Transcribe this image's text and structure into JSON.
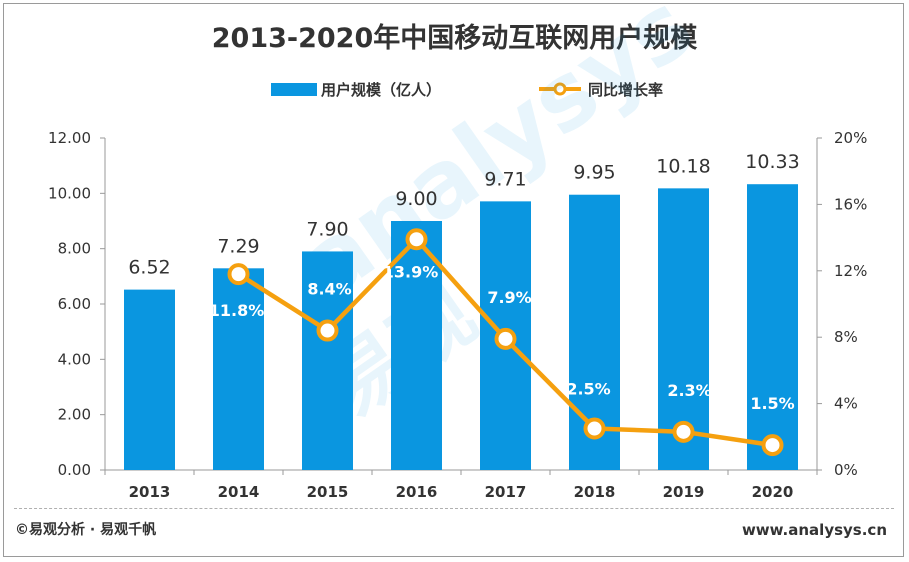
{
  "chart_data": {
    "type": "bar+line",
    "title": "2013-2020年中国移动互联网用户规模",
    "categories": [
      "2013",
      "2014",
      "2015",
      "2016",
      "2017",
      "2018",
      "2019",
      "2020"
    ],
    "series": [
      {
        "name": "用户规模（亿人）",
        "type": "bar",
        "axis": "left",
        "values": [
          6.52,
          7.29,
          7.9,
          9.0,
          9.71,
          9.95,
          10.18,
          10.33
        ],
        "labels": [
          "6.52",
          "7.29",
          "7.90",
          "9.00",
          "9.71",
          "9.95",
          "10.18",
          "10.33"
        ]
      },
      {
        "name": "同比增长率",
        "type": "line",
        "axis": "right",
        "values": [
          null,
          11.8,
          8.4,
          13.9,
          7.9,
          2.5,
          2.3,
          1.5
        ],
        "labels": [
          "",
          "11.8%",
          "8.4%",
          "13.9%",
          "7.9%",
          "2.5%",
          "2.3%",
          "1.5%"
        ]
      }
    ],
    "y_left": {
      "min": 0,
      "max": 12,
      "ticks": [
        "0.00",
        "2.00",
        "4.00",
        "6.00",
        "8.00",
        "10.00",
        "12.00"
      ]
    },
    "y_right": {
      "min": 0,
      "max": 20,
      "ticks": [
        "0%",
        "4%",
        "8%",
        "12%",
        "16%",
        "20%"
      ]
    },
    "legend_position": "top-center",
    "grid": false
  },
  "colors": {
    "bar": "#0a96e0",
    "line": "#f5a00f",
    "marker_fill": "#ffffff",
    "text": "#333333"
  },
  "watermark": {
    "text": "analysys",
    "cn": "易观"
  },
  "footer": {
    "left": "©易观分析 · 易观千帆",
    "right": "www.analysys.cn"
  }
}
